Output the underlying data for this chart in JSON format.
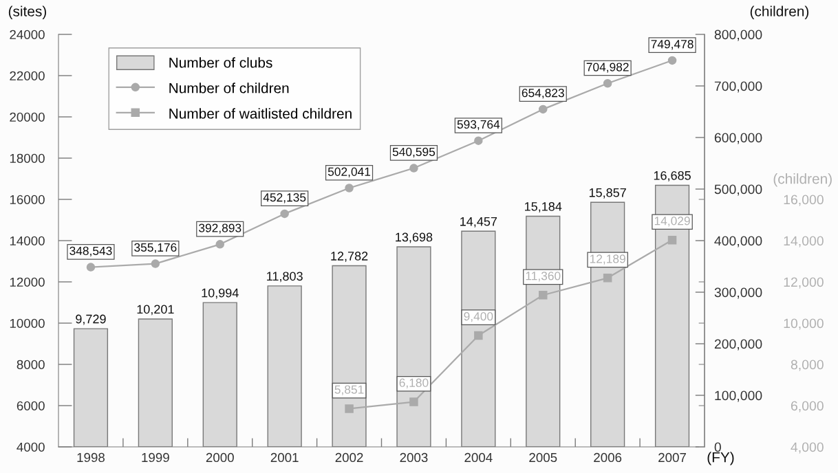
{
  "chart_data": {
    "type": "bar",
    "categories": [
      "1998",
      "1999",
      "2000",
      "2001",
      "2002",
      "2003",
      "2004",
      "2005",
      "2006",
      "2007"
    ],
    "xlabel": "(FY)",
    "ylabel": "(sites)",
    "y2label": "(children)",
    "y3label": "(children)",
    "ylim": [
      4000,
      24000
    ],
    "yticks": [
      4000,
      6000,
      8000,
      10000,
      12000,
      14000,
      16000,
      18000,
      20000,
      22000,
      24000
    ],
    "y2lim": [
      0,
      800000
    ],
    "y2ticks": [
      {
        "value": 0,
        "label": "0"
      },
      {
        "value": 100000,
        "label": "100,000"
      },
      {
        "value": 200000,
        "label": "200,000"
      },
      {
        "value": 300000,
        "label": "300,000"
      },
      {
        "value": 400000,
        "label": "400,000"
      },
      {
        "value": 500000,
        "label": "500,000"
      },
      {
        "value": 600000,
        "label": "600,000"
      },
      {
        "value": 700000,
        "label": "700,000"
      },
      {
        "value": 800000,
        "label": "800,000"
      }
    ],
    "y3lim": [
      4000,
      24000
    ],
    "y3ticks": [
      {
        "value": 4000,
        "label": "4,000"
      },
      {
        "value": 6000,
        "label": "6,000"
      },
      {
        "value": 8000,
        "label": "8,000"
      },
      {
        "value": 10000,
        "label": "10,000"
      },
      {
        "value": 12000,
        "label": "12,000"
      },
      {
        "value": 14000,
        "label": "14,000"
      },
      {
        "value": 16000,
        "label": "16,000"
      }
    ],
    "series": [
      {
        "name": "Number of clubs",
        "color": "#d9d9d9",
        "values": [
          9729,
          10201,
          10994,
          11803,
          12782,
          13698,
          14457,
          15184,
          15857,
          16685
        ],
        "value_labels": [
          "9,729",
          "10,201",
          "10,994",
          "11,803",
          "12,782",
          "13,698",
          "14,457",
          "15,184",
          "15,857",
          "16,685"
        ]
      },
      {
        "name": "Number of children",
        "type": "line",
        "axis": "y2",
        "color": "#aaaaaa",
        "marker": "circle",
        "values": [
          348543,
          355176,
          392893,
          452135,
          502041,
          540595,
          593764,
          654823,
          704982,
          749478
        ],
        "value_labels": [
          "348,543",
          "355,176",
          "392,893",
          "452,135",
          "502,041",
          "540,595",
          "593,764",
          "654,823",
          "704,982",
          "749,478"
        ]
      },
      {
        "name": "Number of waitlisted children",
        "type": "line",
        "axis": "y3",
        "color": "#aaaaaa",
        "marker": "square",
        "values": [
          null,
          null,
          null,
          null,
          5851,
          6180,
          9400,
          11360,
          12189,
          14029
        ],
        "value_labels": [
          null,
          null,
          null,
          null,
          "5,851",
          "6,180",
          "9,400",
          "11,360",
          "12,189",
          "14,029"
        ]
      }
    ],
    "legend": "top left",
    "grid": false
  }
}
